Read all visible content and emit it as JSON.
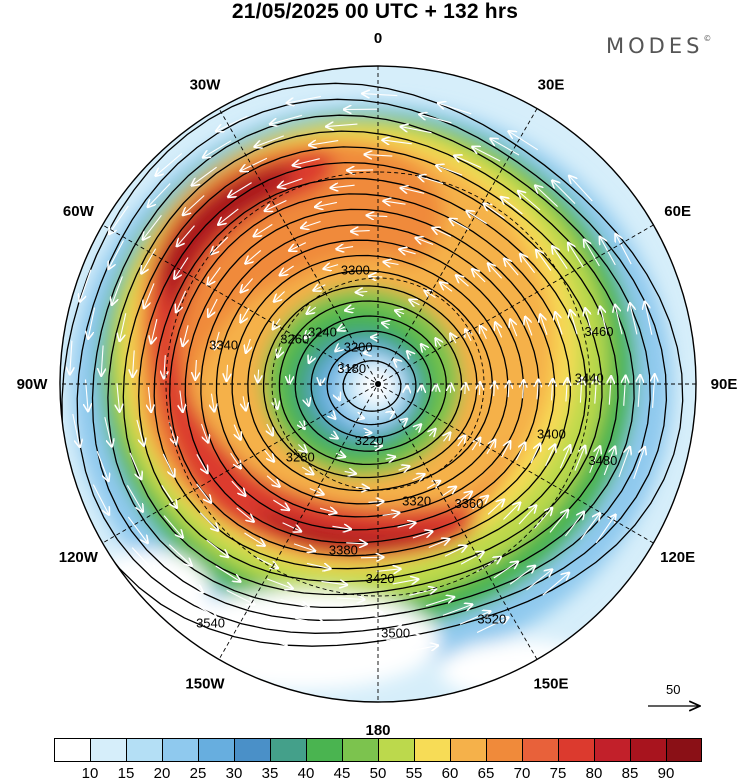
{
  "title": "21/05/2025  00 UTC  + 132 hrs",
  "brand": {
    "name": "MODES",
    "mark": "©"
  },
  "map": {
    "projection": "polar-stereographic-south",
    "longitude_labels": [
      {
        "text": "0",
        "angle_deg": 0
      },
      {
        "text": "30E",
        "angle_deg": 30
      },
      {
        "text": "60E",
        "angle_deg": 60
      },
      {
        "text": "90E",
        "angle_deg": 90
      },
      {
        "text": "120E",
        "angle_deg": 120
      },
      {
        "text": "150E",
        "angle_deg": 150
      },
      {
        "text": "180",
        "angle_deg": 180
      },
      {
        "text": "150W",
        "angle_deg": 210
      },
      {
        "text": "120W",
        "angle_deg": 240
      },
      {
        "text": "90W",
        "angle_deg": 270
      },
      {
        "text": "60W",
        "angle_deg": 300
      },
      {
        "text": "30W",
        "angle_deg": 330
      }
    ],
    "contour_labels": [
      "3180",
      "3200",
      "3220",
      "3240",
      "3260",
      "3280",
      "3300",
      "3320",
      "3340",
      "3360",
      "3380",
      "3400",
      "3420",
      "3440",
      "3460",
      "3480",
      "3500",
      "3520",
      "3540"
    ],
    "reference_vector": "50"
  },
  "colorbar": {
    "colors": [
      "#ffffff",
      "#d6eefa",
      "#b4dff5",
      "#8fc9ee",
      "#67aedf",
      "#4a90c8",
      "#44a08a",
      "#4ab450",
      "#7cc34e",
      "#bcd94c",
      "#f7dc56",
      "#f5b14a",
      "#f08a3a",
      "#e8613a",
      "#dc3a2e",
      "#c2202a",
      "#a8141e",
      "#8a1016"
    ],
    "ticks": [
      "10",
      "15",
      "20",
      "25",
      "30",
      "35",
      "40",
      "45",
      "50",
      "55",
      "60",
      "65",
      "70",
      "75",
      "80",
      "85",
      "90"
    ]
  }
}
